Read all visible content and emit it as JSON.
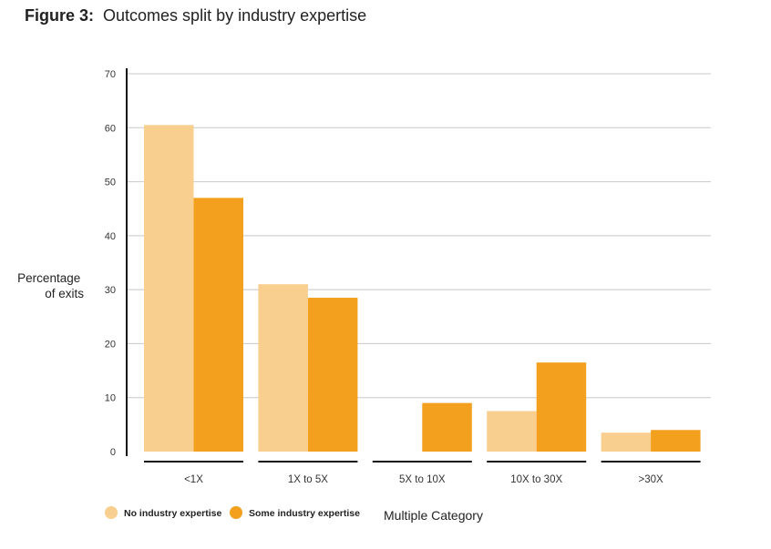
{
  "chart_data": {
    "type": "bar",
    "title_prefix": "Figure 3:",
    "title": "Outcomes split by industry expertise",
    "xlabel": "Multiple Category",
    "ylabel_lines": [
      "Percentage",
      "of exits"
    ],
    "categories": [
      "<1X",
      "1X to 5X",
      "5X to 10X",
      "10X to 30X",
      ">30X"
    ],
    "series": [
      {
        "name": "No industry expertise",
        "color": "#f8cf8e",
        "values": [
          60.5,
          31,
          0,
          7.5,
          3.5
        ]
      },
      {
        "name": "Some industry expertise",
        "color": "#f2a01e",
        "values": [
          47,
          28.5,
          9,
          16.5,
          4
        ]
      }
    ],
    "ylim": [
      0,
      70
    ],
    "yticks": [
      0,
      10,
      20,
      30,
      40,
      50,
      60,
      70
    ],
    "grid": true,
    "legend_position": "bottom-left"
  }
}
